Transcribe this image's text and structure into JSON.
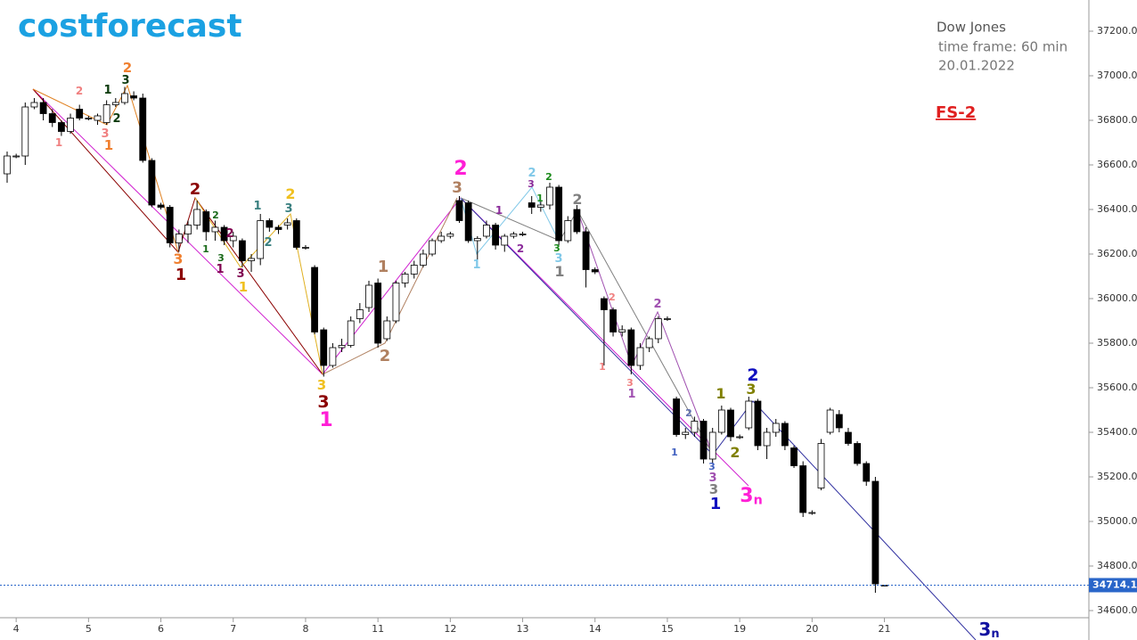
{
  "chart_data": {
    "type": "candlestick",
    "logo": "costforecast",
    "title": "Dow Jones",
    "subtitle": "time frame: 60 min",
    "date": "20.01.2022",
    "tag": "FS-2",
    "categories": [
      null,
      "4",
      null,
      null,
      null,
      null,
      null,
      null,
      null,
      "5",
      null,
      null,
      null,
      null,
      null,
      null,
      null,
      "6",
      null,
      null,
      null,
      null,
      null,
      null,
      null,
      "7",
      null,
      null,
      null,
      null,
      null,
      null,
      null,
      "8",
      null,
      null,
      null,
      null,
      null,
      null,
      null,
      "11",
      null,
      null,
      null,
      null,
      null,
      null,
      null,
      "12",
      null,
      null,
      null,
      null,
      null,
      null,
      null,
      "13",
      null,
      null,
      null,
      null,
      null,
      null,
      null,
      "14",
      null,
      null,
      null,
      null,
      null,
      null,
      null,
      "15",
      null,
      null,
      null,
      null,
      null,
      null,
      null,
      "19",
      null,
      null,
      null,
      null,
      null,
      null,
      null,
      "20",
      null,
      null,
      null,
      null,
      null,
      null,
      null,
      "21"
    ],
    "open": [
      36560,
      36640,
      36640,
      36860,
      36880,
      36830,
      36790,
      36750,
      36850,
      36810,
      36800,
      36790,
      36870,
      36880,
      36910,
      36900,
      36620,
      36420,
      36410,
      36250,
      36290,
      36330,
      36390,
      36300,
      36320,
      36260,
      36260,
      36170,
      36180,
      36350,
      36320,
      36330,
      36350,
      36230,
      36140,
      35860,
      35700,
      35780,
      35790,
      35910,
      35960,
      36070,
      35820,
      35900,
      36070,
      36110,
      36150,
      36200,
      36260,
      36280,
      36440,
      36430,
      36260,
      36280,
      36330,
      36240,
      36280,
      36290,
      36430,
      36410,
      36420,
      36500,
      36260,
      36400,
      36300,
      36130,
      36000,
      35950,
      35850,
      35860,
      35700,
      35780,
      35820,
      35910,
      35550,
      35390,
      35400,
      35450,
      35280,
      35400,
      35500,
      35380,
      35420,
      35540,
      35340,
      35400,
      35440,
      35330,
      35250,
      35040,
      35150,
      35400,
      35480,
      35400,
      35350,
      35260,
      35180,
      34714.14
    ],
    "high": [
      36660,
      36650,
      36880,
      36900,
      36900,
      36850,
      36800,
      36830,
      36870,
      36820,
      36830,
      36890,
      36900,
      36950,
      36930,
      36920,
      36630,
      36430,
      36420,
      36310,
      36350,
      36440,
      36400,
      36350,
      36330,
      36300,
      36270,
      36200,
      36380,
      36360,
      36330,
      36360,
      36360,
      36240,
      36150,
      35870,
      35800,
      35820,
      35920,
      35980,
      36080,
      36090,
      35920,
      36080,
      36120,
      36170,
      36220,
      36270,
      36300,
      36300,
      36460,
      36440,
      36280,
      36350,
      36340,
      36290,
      36300,
      36300,
      36460,
      36440,
      36520,
      36510,
      36370,
      36420,
      36320,
      36140,
      36010,
      35960,
      35880,
      35870,
      35800,
      35830,
      35920,
      35920,
      35560,
      35420,
      35470,
      35460,
      35420,
      35520,
      35510,
      35390,
      35560,
      35550,
      35420,
      35460,
      35450,
      35340,
      35270,
      35050,
      35370,
      35510,
      35500,
      35420,
      35360,
      35270,
      35200,
      34714.14
    ],
    "low": [
      36520,
      36630,
      36600,
      36850,
      36800,
      36770,
      36730,
      36740,
      36800,
      36800,
      36780,
      36780,
      36860,
      36870,
      36890,
      36610,
      36410,
      36400,
      36230,
      36210,
      36250,
      36310,
      36260,
      36260,
      36240,
      36230,
      36140,
      36120,
      36150,
      36300,
      36290,
      36310,
      36220,
      36220,
      35840,
      35650,
      35690,
      35760,
      35780,
      35890,
      35940,
      35780,
      35810,
      35890,
      36050,
      36090,
      36140,
      36190,
      36250,
      36270,
      36340,
      36250,
      36170,
      36270,
      36220,
      36210,
      36270,
      36280,
      36380,
      36390,
      36400,
      36240,
      36250,
      36290,
      36050,
      36110,
      35700,
      35830,
      35830,
      35660,
      35680,
      35760,
      35800,
      35900,
      35380,
      35370,
      35380,
      35260,
      35260,
      35390,
      35360,
      35370,
      35410,
      35320,
      35280,
      35380,
      35320,
      35240,
      35020,
      35030,
      35140,
      35390,
      35400,
      35340,
      35250,
      35160,
      34680,
      34714.14
    ],
    "close": [
      36640,
      36640,
      36860,
      36880,
      36830,
      36790,
      36750,
      36810,
      36810,
      36810,
      36820,
      36870,
      36880,
      36920,
      36900,
      36620,
      36420,
      36410,
      36250,
      36290,
      36330,
      36400,
      36300,
      36320,
      36260,
      36280,
      36170,
      36180,
      36350,
      36320,
      36310,
      36340,
      36230,
      36230,
      35850,
      35700,
      35780,
      35790,
      35900,
      35950,
      36060,
      35800,
      35900,
      36070,
      36110,
      36150,
      36200,
      36260,
      36280,
      36290,
      36350,
      36260,
      36270,
      36330,
      36240,
      36280,
      36290,
      36290,
      36410,
      36420,
      36500,
      36260,
      36350,
      36300,
      36130,
      36120,
      35950,
      35850,
      35860,
      35700,
      35780,
      35820,
      35910,
      35910,
      35390,
      35400,
      35450,
      35280,
      35400,
      35500,
      35380,
      35380,
      35540,
      35340,
      35400,
      35440,
      35340,
      35250,
      35040,
      35040,
      35350,
      35500,
      35420,
      35350,
      35260,
      35180,
      34720,
      34714.14
    ],
    "up_color": "#ffffff",
    "down_color": "#000000",
    "last_price": 34714.14,
    "last_price_color": "#2a66c9",
    "ylim": [
      34560,
      37320
    ],
    "yticks": [
      {
        "value": 34600,
        "label": "34600.00"
      },
      {
        "value": 34800,
        "label": "34800.00"
      },
      {
        "value": 35000,
        "label": "35000.00"
      },
      {
        "value": 35200,
        "label": "35200.00"
      },
      {
        "value": 35400,
        "label": "35400.00"
      },
      {
        "value": 35600,
        "label": "35600.00"
      },
      {
        "value": 35800,
        "label": "35800.00"
      },
      {
        "value": 36000,
        "label": "36000.00"
      },
      {
        "value": 36200,
        "label": "36200.00"
      },
      {
        "value": 36400,
        "label": "36400.00"
      },
      {
        "value": 36600,
        "label": "36600.00"
      },
      {
        "value": 36800,
        "label": "36800.00"
      },
      {
        "value": 37000,
        "label": "37000.00"
      },
      {
        "value": 37200,
        "label": "37200.00"
      }
    ],
    "annotations": [
      {
        "text": "2",
        "color": "#ff1fd6"
      },
      {
        "text": "1",
        "color": "#ff1fd6"
      },
      {
        "text": "3",
        "color": "#8b0000"
      },
      {
        "text": "3",
        "color": "#f0c020"
      },
      {
        "text": "2",
        "color": "#8b0000"
      },
      {
        "text": "1",
        "color": "#8b0000"
      },
      {
        "text": "3",
        "color": "#f08030"
      },
      {
        "text": "2",
        "color": "#f08030"
      },
      {
        "text": "1",
        "color": "#f08030"
      },
      {
        "text": "3",
        "color": "#f08080"
      },
      {
        "text": "2",
        "color": "#f08080"
      },
      {
        "text": "1",
        "color": "#f08080"
      },
      {
        "text": "1",
        "color": "#0a3a0a"
      },
      {
        "text": "3",
        "color": "#0a3a0a"
      },
      {
        "text": "2",
        "color": "#0a3a0a"
      },
      {
        "text": "2",
        "color": "#f0c020"
      },
      {
        "text": "1",
        "color": "#f0c020"
      },
      {
        "text": "3",
        "color": "#800050"
      },
      {
        "text": "1",
        "color": "#800050"
      },
      {
        "text": "2",
        "color": "#800050"
      },
      {
        "text": "1",
        "color": "#1a6a1a"
      },
      {
        "text": "2",
        "color": "#1a6a1a"
      },
      {
        "text": "3",
        "color": "#1a6a1a"
      },
      {
        "text": "1",
        "color": "#3a8080"
      },
      {
        "text": "3",
        "color": "#3a8080"
      },
      {
        "text": "2",
        "color": "#3a8080"
      },
      {
        "text": "1",
        "color": "#b08060"
      },
      {
        "text": "2",
        "color": "#b08060"
      },
      {
        "text": "3",
        "color": "#b08060"
      },
      {
        "text": "1",
        "color": "#8a2a9a"
      },
      {
        "text": "2",
        "color": "#8a2a9a"
      },
      {
        "text": "2",
        "color": "#80c8e8"
      },
      {
        "text": "1",
        "color": "#80c8e8"
      },
      {
        "text": "3",
        "color": "#80c8e8"
      },
      {
        "text": "3",
        "color": "#8a2a9a"
      },
      {
        "text": "2",
        "color": "#1a8a1a"
      },
      {
        "text": "1",
        "color": "#1a8a1a"
      },
      {
        "text": "3",
        "color": "#1a8a1a"
      },
      {
        "text": "2",
        "color": "#808080"
      },
      {
        "text": "1",
        "color": "#808080"
      },
      {
        "text": "2",
        "color": "#f08080"
      },
      {
        "text": "1",
        "color": "#f08080"
      },
      {
        "text": "3",
        "color": "#f08080"
      },
      {
        "text": "1",
        "color": "#a050b0"
      },
      {
        "text": "2",
        "color": "#a050b0"
      },
      {
        "text": "2",
        "color": "#6070b0"
      },
      {
        "text": "1",
        "color": "#4060c0"
      },
      {
        "text": "3",
        "color": "#4060c0"
      },
      {
        "text": "3",
        "color": "#a050b0"
      },
      {
        "text": "3",
        "color": "#808080"
      },
      {
        "text": "1",
        "color": "#1010c0"
      },
      {
        "text": "2",
        "color": "#1010c0"
      },
      {
        "text": "1",
        "color": "#808000"
      },
      {
        "text": "3",
        "color": "#808000"
      },
      {
        "text": "2",
        "color": "#808000"
      },
      {
        "text": "3",
        "sub": "n",
        "color": "#ff1fd6"
      },
      {
        "text": "3",
        "sub": "n",
        "color": "#1010a0"
      }
    ]
  }
}
